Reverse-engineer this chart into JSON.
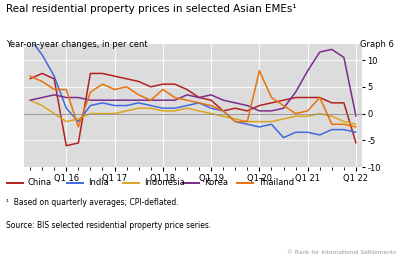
{
  "title": "Real residential property prices in selected Asian EMEs¹",
  "subtitle": "Year-on-year changes, in per cent",
  "graph_label": "Graph 6",
  "footnote1": "¹  Based on quarterly averages; CPI-deflated.",
  "footnote2": "Source: BIS selected residential property price series.",
  "copyright": "© Bank for International Settlements",
  "background_color": "#dcdcdc",
  "ylim": [
    -10,
    13
  ],
  "yticks": [
    -10,
    -5,
    0,
    5,
    10
  ],
  "x_labels": [
    "Q1 16",
    "Q1 17",
    "Q1 18",
    "Q1 19",
    "Q1 20",
    "Q1 21",
    "Q1 22"
  ],
  "x_major_ticks": [
    3,
    7,
    11,
    15,
    19,
    23,
    27
  ],
  "series": {
    "China": {
      "color": "#b22222",
      "data": [
        6.5,
        7.5,
        6.5,
        -6.0,
        -5.5,
        7.5,
        7.5,
        7.0,
        6.5,
        6.0,
        5.0,
        5.5,
        5.5,
        4.5,
        3.0,
        2.5,
        0.5,
        1.0,
        0.5,
        1.5,
        2.0,
        2.5,
        3.0,
        3.0,
        3.0,
        2.0,
        2.0,
        -5.5
      ]
    },
    "India": {
      "color": "#4169e1",
      "data": [
        14.0,
        11.0,
        7.0,
        1.0,
        -1.5,
        1.5,
        2.0,
        1.5,
        1.5,
        2.0,
        1.5,
        1.0,
        1.0,
        1.5,
        2.0,
        1.0,
        0.5,
        -1.5,
        -2.0,
        -2.5,
        -2.0,
        -4.5,
        -3.5,
        -3.5,
        -4.0,
        -3.0,
        -3.0,
        -3.5
      ]
    },
    "Indonesia": {
      "color": "#daa520",
      "data": [
        2.5,
        1.5,
        0.0,
        -1.5,
        -1.0,
        0.0,
        0.0,
        0.0,
        0.5,
        1.0,
        1.0,
        0.5,
        0.5,
        1.0,
        0.5,
        0.0,
        -0.5,
        -1.0,
        -1.5,
        -1.5,
        -1.5,
        -1.0,
        -0.5,
        -0.5,
        0.0,
        -0.5,
        -1.5,
        -2.0
      ]
    },
    "Korea": {
      "color": "#7b2d8b",
      "data": [
        2.5,
        3.0,
        3.5,
        3.0,
        3.0,
        2.5,
        2.5,
        2.5,
        2.5,
        2.5,
        2.5,
        2.5,
        2.5,
        3.5,
        3.0,
        3.5,
        2.5,
        2.0,
        1.5,
        0.5,
        0.5,
        1.0,
        4.0,
        8.0,
        11.5,
        12.0,
        10.5,
        -0.5
      ]
    },
    "Thailand": {
      "color": "#e8720c",
      "data": [
        7.0,
        6.0,
        4.5,
        4.5,
        -2.5,
        4.0,
        5.5,
        4.5,
        5.0,
        3.5,
        2.5,
        4.5,
        3.0,
        2.5,
        2.0,
        1.5,
        0.5,
        -1.5,
        -1.5,
        8.0,
        3.0,
        1.5,
        0.0,
        0.5,
        3.0,
        -2.0,
        -2.0,
        -2.5
      ]
    }
  },
  "n_points": 28,
  "legend_entries": [
    "China",
    "India",
    "Indonesia",
    "Korea",
    "Thailand"
  ]
}
